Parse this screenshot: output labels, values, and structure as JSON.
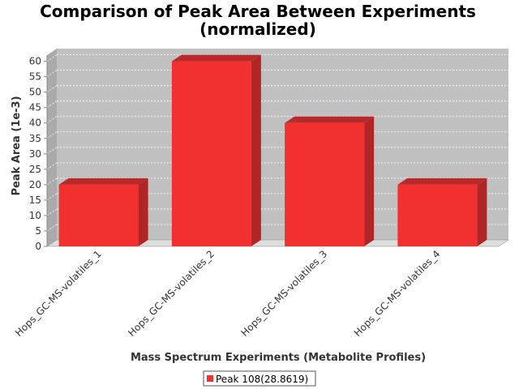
{
  "chart_data": {
    "type": "bar",
    "title_line1": "Comparison of Peak Area Between Experiments",
    "title_line2": "(normalized)",
    "xlabel": "Mass Spectrum Experiments (Metabolite Profiles)",
    "ylabel": "Peak Area (1e-3)",
    "categories": [
      "Hops_GC-MS-volatiles_1",
      "Hops_GC-MS-volatiles_2",
      "Hops_GC-MS-volatiles_3",
      "Hops_GC-MS-volatiles_4"
    ],
    "series": [
      {
        "name": "Peak 108(28.8619)",
        "values": [
          20,
          60,
          40,
          20
        ]
      }
    ],
    "ylim": [
      0,
      62
    ],
    "yticks": [
      0,
      5,
      10,
      15,
      20,
      25,
      30,
      35,
      40,
      45,
      50,
      55,
      60
    ],
    "grid": true,
    "legend_position": "bottom",
    "colors": {
      "bar_front": "#f23030",
      "bar_top": "#b82a2a",
      "bar_side": "#b02525",
      "plot_bg": "#c0c0c0",
      "plot_floor": "#dddddd",
      "grid": "#ffffff"
    }
  }
}
